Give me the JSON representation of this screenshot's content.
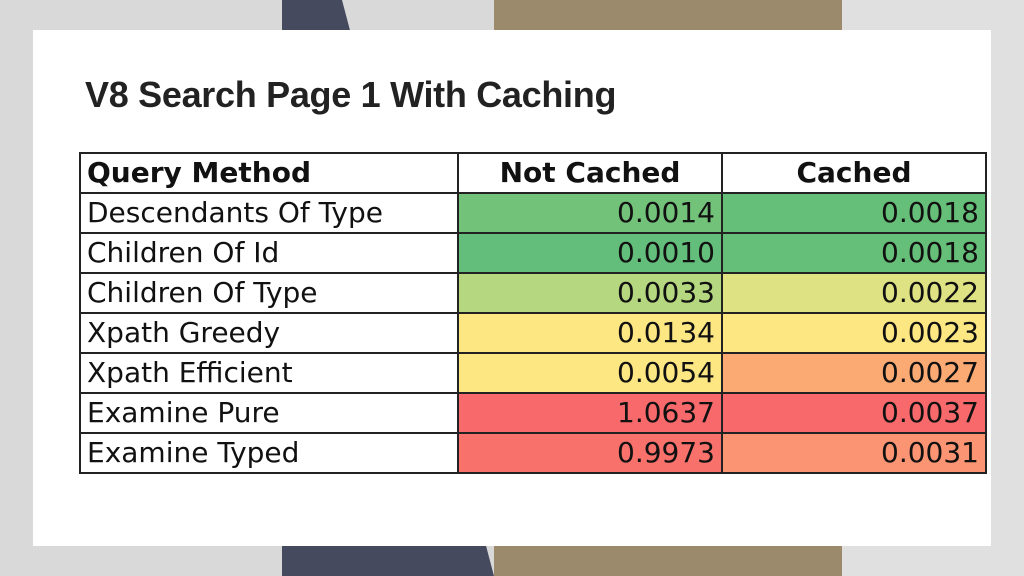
{
  "title": "V8 Search Page 1 With Caching",
  "headers": {
    "method": "Query Method",
    "not_cached": "Not Cached",
    "cached": "Cached"
  },
  "rows": [
    {
      "method": "Descendants Of Type",
      "not_cached": "0.0014",
      "cached": "0.0018",
      "not_cached_color": "#72c27a",
      "cached_color": "#66bf78"
    },
    {
      "method": "Children Of Id",
      "not_cached": "0.0010",
      "cached": "0.0018",
      "not_cached_color": "#63be7b",
      "cached_color": "#66bf78"
    },
    {
      "method": "Children Of Type",
      "not_cached": "0.0033",
      "cached": "0.0022",
      "not_cached_color": "#b5d77f",
      "cached_color": "#dfe283"
    },
    {
      "method": "Xpath Greedy",
      "not_cached": "0.0134",
      "cached": "0.0023",
      "not_cached_color": "#fde782",
      "cached_color": "#fde782"
    },
    {
      "method": "Xpath Efficient",
      "not_cached": "0.0054",
      "cached": "0.0027",
      "not_cached_color": "#fde782",
      "cached_color": "#fbaa74"
    },
    {
      "method": "Examine Pure",
      "not_cached": "1.0637",
      "cached": "0.0037",
      "not_cached_color": "#f8696b",
      "cached_color": "#f8696b"
    },
    {
      "method": "Examine Typed",
      "not_cached": "0.9973",
      "cached": "0.0031",
      "not_cached_color": "#f8716b",
      "cached_color": "#fa9472"
    }
  ]
}
